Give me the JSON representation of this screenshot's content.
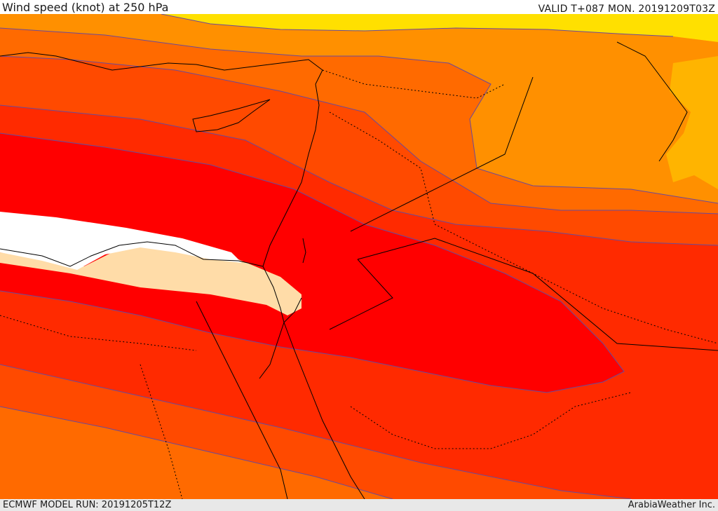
{
  "header": {
    "title": "Wind speed (knot) at 250 hPa",
    "valid_time": "VALID T+087 MON. 20191209T03Z"
  },
  "footer": {
    "model_run": "ECMWF MODEL RUN: 20191205T12Z",
    "credit": "ArabiaWeather Inc."
  },
  "map": {
    "variable": "wind speed",
    "level": "250 hPa",
    "units": "knot",
    "colors": {
      "yellow": "#ffe000",
      "light_orange": "#ffb400",
      "orange": "#ff9000",
      "dark_orange": "#ff6a00",
      "red_orange": "#ff4a00",
      "orange_red": "#ff2a00",
      "red": "#ff0000",
      "peach": "#ffdca8",
      "white_core": "#ffffff",
      "contour": "#6a4a9a",
      "coastline": "#000000"
    }
  }
}
